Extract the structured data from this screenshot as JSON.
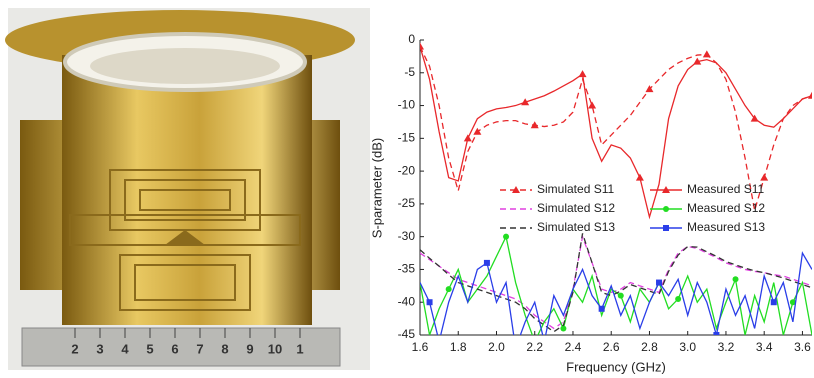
{
  "photo": {
    "ruler_labels": [
      "2",
      "3",
      "4",
      "5",
      "6",
      "7",
      "8",
      "9",
      "10",
      "1"
    ]
  },
  "chart_data": {
    "type": "line",
    "xlabel": "Frequency (GHz)",
    "ylabel": "S-parameter (dB)",
    "xlim": [
      1.6,
      3.65
    ],
    "ylim": [
      -45,
      0
    ],
    "xticks": [
      1.6,
      1.8,
      {
        "value": 2,
        "label": "2.0"
      },
      2.2,
      2.4,
      2.6,
      2.8,
      {
        "value": 3,
        "label": "3.0"
      },
      3.2,
      3.4,
      3.6
    ],
    "yticks": [
      0,
      -5,
      -10,
      -15,
      -20,
      -25,
      -30,
      -35,
      -40,
      -45
    ],
    "x": [
      1.6,
      1.65,
      1.7,
      1.75,
      1.8,
      1.85,
      1.9,
      1.95,
      2.0,
      2.05,
      2.1,
      2.15,
      2.2,
      2.25,
      2.3,
      2.35,
      2.4,
      2.45,
      2.5,
      2.55,
      2.6,
      2.65,
      2.7,
      2.75,
      2.8,
      2.85,
      2.9,
      2.95,
      3.0,
      3.05,
      3.1,
      3.15,
      3.2,
      3.25,
      3.3,
      3.35,
      3.4,
      3.45,
      3.5,
      3.55,
      3.6,
      3.65
    ],
    "series": [
      {
        "name": "Simulated S11",
        "color": "#e8282b",
        "line_style": "dashed",
        "marker": "triangle",
        "values": [
          -1,
          -4,
          -10,
          -18,
          -23,
          -17,
          -14,
          -13,
          -12.5,
          -12.3,
          -12.3,
          -12.8,
          -13,
          -13.2,
          -13,
          -12.5,
          -11,
          -6,
          -10,
          -16,
          -14.5,
          -13,
          -11.5,
          -9.5,
          -7.5,
          -6,
          -4.5,
          -3.5,
          -2.8,
          -2.3,
          -2.2,
          -3.5,
          -6,
          -11,
          -18,
          -26,
          -21,
          -16,
          -12,
          -10,
          -9,
          -8.5
        ]
      },
      {
        "name": "Measured S11",
        "color": "#e8282b",
        "line_style": "solid",
        "marker": "triangle",
        "values": [
          -1,
          -6,
          -14,
          -21,
          -21.5,
          -15,
          -12,
          -11,
          -10.5,
          -10.3,
          -10,
          -9.5,
          -9,
          -8.5,
          -7.8,
          -7,
          -6.2,
          -5.2,
          -15,
          -18.5,
          -16,
          -16.5,
          -18,
          -21,
          -27,
          -22,
          -12,
          -7,
          -4.5,
          -3.3,
          -3,
          -3.5,
          -5,
          -7.5,
          -10,
          -12,
          -13,
          -13.3,
          -12,
          -10.5,
          -9,
          -8.5
        ]
      },
      {
        "name": "Simulated S12",
        "color": "#e040e0",
        "line_style": "dashed",
        "values": [
          -32.5,
          -33.5,
          -34.5,
          -35.5,
          -36.5,
          -37,
          -37.5,
          -38,
          -38.5,
          -39,
          -39.5,
          -40.5,
          -42,
          -43,
          -44,
          -43,
          -38,
          -30,
          -34,
          -38,
          -38.5,
          -38,
          -37,
          -37.5,
          -38,
          -38.5,
          -35,
          -32.5,
          -31.5,
          -31.8,
          -32.5,
          -33.2,
          -34,
          -34.5,
          -35,
          -35.3,
          -35.5,
          -35.8,
          -36,
          -36.5,
          -37,
          -37.5
        ]
      },
      {
        "name": "Measured S12",
        "color": "#22dd22",
        "line_style": "solid",
        "marker": "circle",
        "values": [
          -37,
          -45,
          -41,
          -38,
          -35,
          -40,
          -38,
          -36,
          -33,
          -30,
          -37,
          -42,
          -46,
          -43,
          -41,
          -44,
          -38,
          -40,
          -36,
          -42,
          -38,
          -39,
          -43,
          -38,
          -40,
          -37,
          -41,
          -39.5,
          -36,
          -40,
          -38,
          -44,
          -40,
          -36.5,
          -45,
          -39,
          -43,
          -37,
          -45,
          -40,
          -37,
          -45
        ]
      },
      {
        "name": "Simulated S13",
        "color": "#333333",
        "line_style": "dashed",
        "values": [
          -32,
          -33.3,
          -34.5,
          -35.8,
          -37,
          -37.5,
          -38,
          -38.5,
          -39,
          -39.5,
          -40,
          -41,
          -42.5,
          -43.5,
          -44.5,
          -43.5,
          -38.5,
          -29.5,
          -34,
          -38.5,
          -39,
          -38.3,
          -37.3,
          -37.8,
          -38.3,
          -38.8,
          -35.3,
          -32.8,
          -31.5,
          -31.6,
          -32.3,
          -33,
          -33.8,
          -34.3,
          -34.8,
          -35.2,
          -35.5,
          -35.9,
          -36.3,
          -36.8,
          -37.3,
          -37.8
        ]
      },
      {
        "name": "Measured S13",
        "color": "#2a3ee8",
        "line_style": "solid",
        "marker": "square",
        "values": [
          -37,
          -40,
          -46,
          -40,
          -36,
          -40,
          -35,
          -34,
          -40,
          -37,
          -47,
          -43,
          -40,
          -46,
          -39,
          -42,
          -38,
          -35,
          -39,
          -41,
          -37.5,
          -42,
          -39,
          -44,
          -40,
          -37,
          -39,
          -36.5,
          -42,
          -37,
          -40,
          -45,
          -38,
          -42,
          -39,
          -44,
          -36,
          -40,
          -37,
          -43,
          -32.5,
          -35
        ]
      }
    ]
  }
}
